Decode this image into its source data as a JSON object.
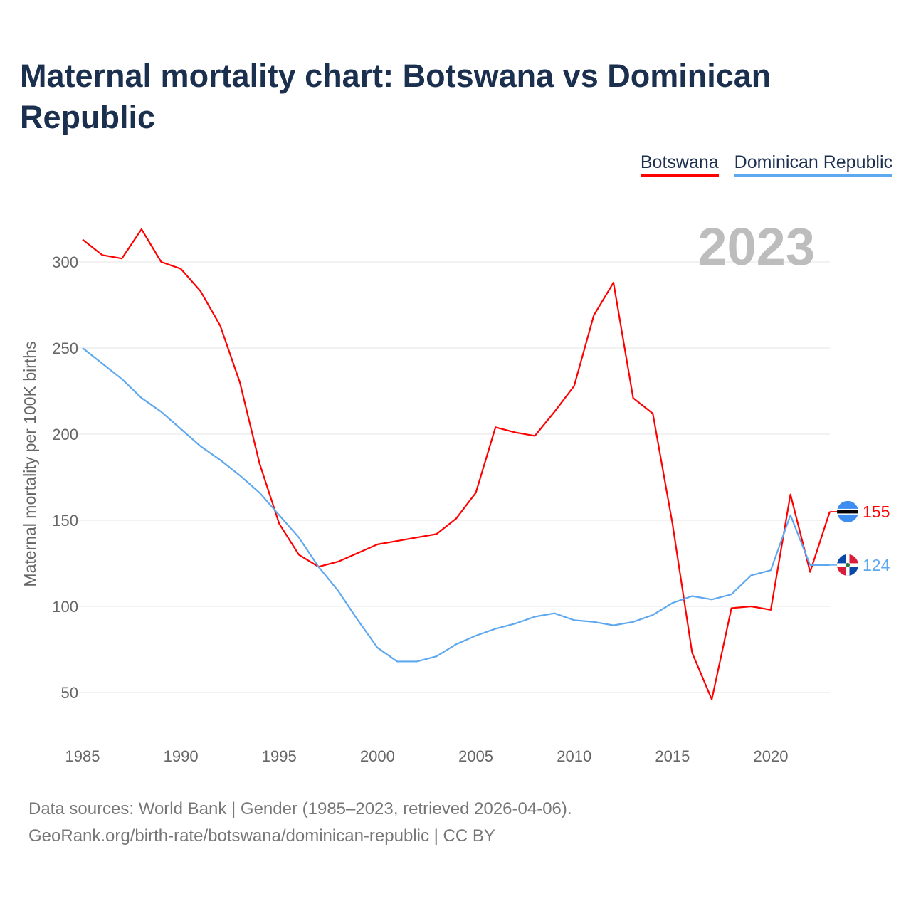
{
  "title": "Maternal mortality chart: Botswana vs Dominican Republic",
  "footer": {
    "line1": "Data sources: World Bank | Gender (1985–2023, retrieved 2026-04-06).",
    "line2": "GeoRank.org/birth-rate/botswana/dominican-republic | CC BY"
  },
  "chart_data": {
    "type": "line",
    "title": "Maternal mortality chart: Botswana vs Dominican Republic",
    "xlabel": "",
    "ylabel": "Maternal mortality per 100K births",
    "year_watermark": "2023",
    "xlim": [
      1985,
      2023
    ],
    "ylim": [
      30,
      330
    ],
    "xticks": [
      1985,
      1990,
      1995,
      2000,
      2005,
      2010,
      2015,
      2020
    ],
    "yticks": [
      50,
      100,
      150,
      200,
      250,
      300
    ],
    "grid": true,
    "legend_position": "top-right",
    "x": [
      1985,
      1986,
      1987,
      1988,
      1989,
      1990,
      1991,
      1992,
      1993,
      1994,
      1995,
      1996,
      1997,
      1998,
      1999,
      2000,
      2001,
      2002,
      2003,
      2004,
      2005,
      2006,
      2007,
      2008,
      2009,
      2010,
      2011,
      2012,
      2013,
      2014,
      2015,
      2016,
      2017,
      2018,
      2019,
      2020,
      2021,
      2022,
      2023
    ],
    "series": [
      {
        "name": "Botswana",
        "color": "#ff0000",
        "end_label": "155",
        "flag": "botswana",
        "values": [
          313,
          304,
          302,
          319,
          300,
          296,
          283,
          263,
          230,
          183,
          148,
          130,
          123,
          126,
          131,
          136,
          138,
          140,
          142,
          151,
          166,
          204,
          201,
          199,
          213,
          228,
          269,
          288,
          221,
          212,
          148,
          73,
          46,
          99,
          100,
          98,
          165,
          120,
          155
        ]
      },
      {
        "name": "Dominican Republic",
        "color": "#5ea8f0",
        "end_label": "124",
        "flag": "dominican-republic",
        "values": [
          250,
          241,
          232,
          221,
          213,
          203,
          193,
          185,
          176,
          166,
          153,
          140,
          123,
          109,
          92,
          76,
          68,
          68,
          71,
          78,
          83,
          87,
          90,
          94,
          96,
          92,
          91,
          89,
          91,
          95,
          102,
          106,
          104,
          107,
          118,
          121,
          153,
          124,
          124
        ]
      }
    ]
  }
}
